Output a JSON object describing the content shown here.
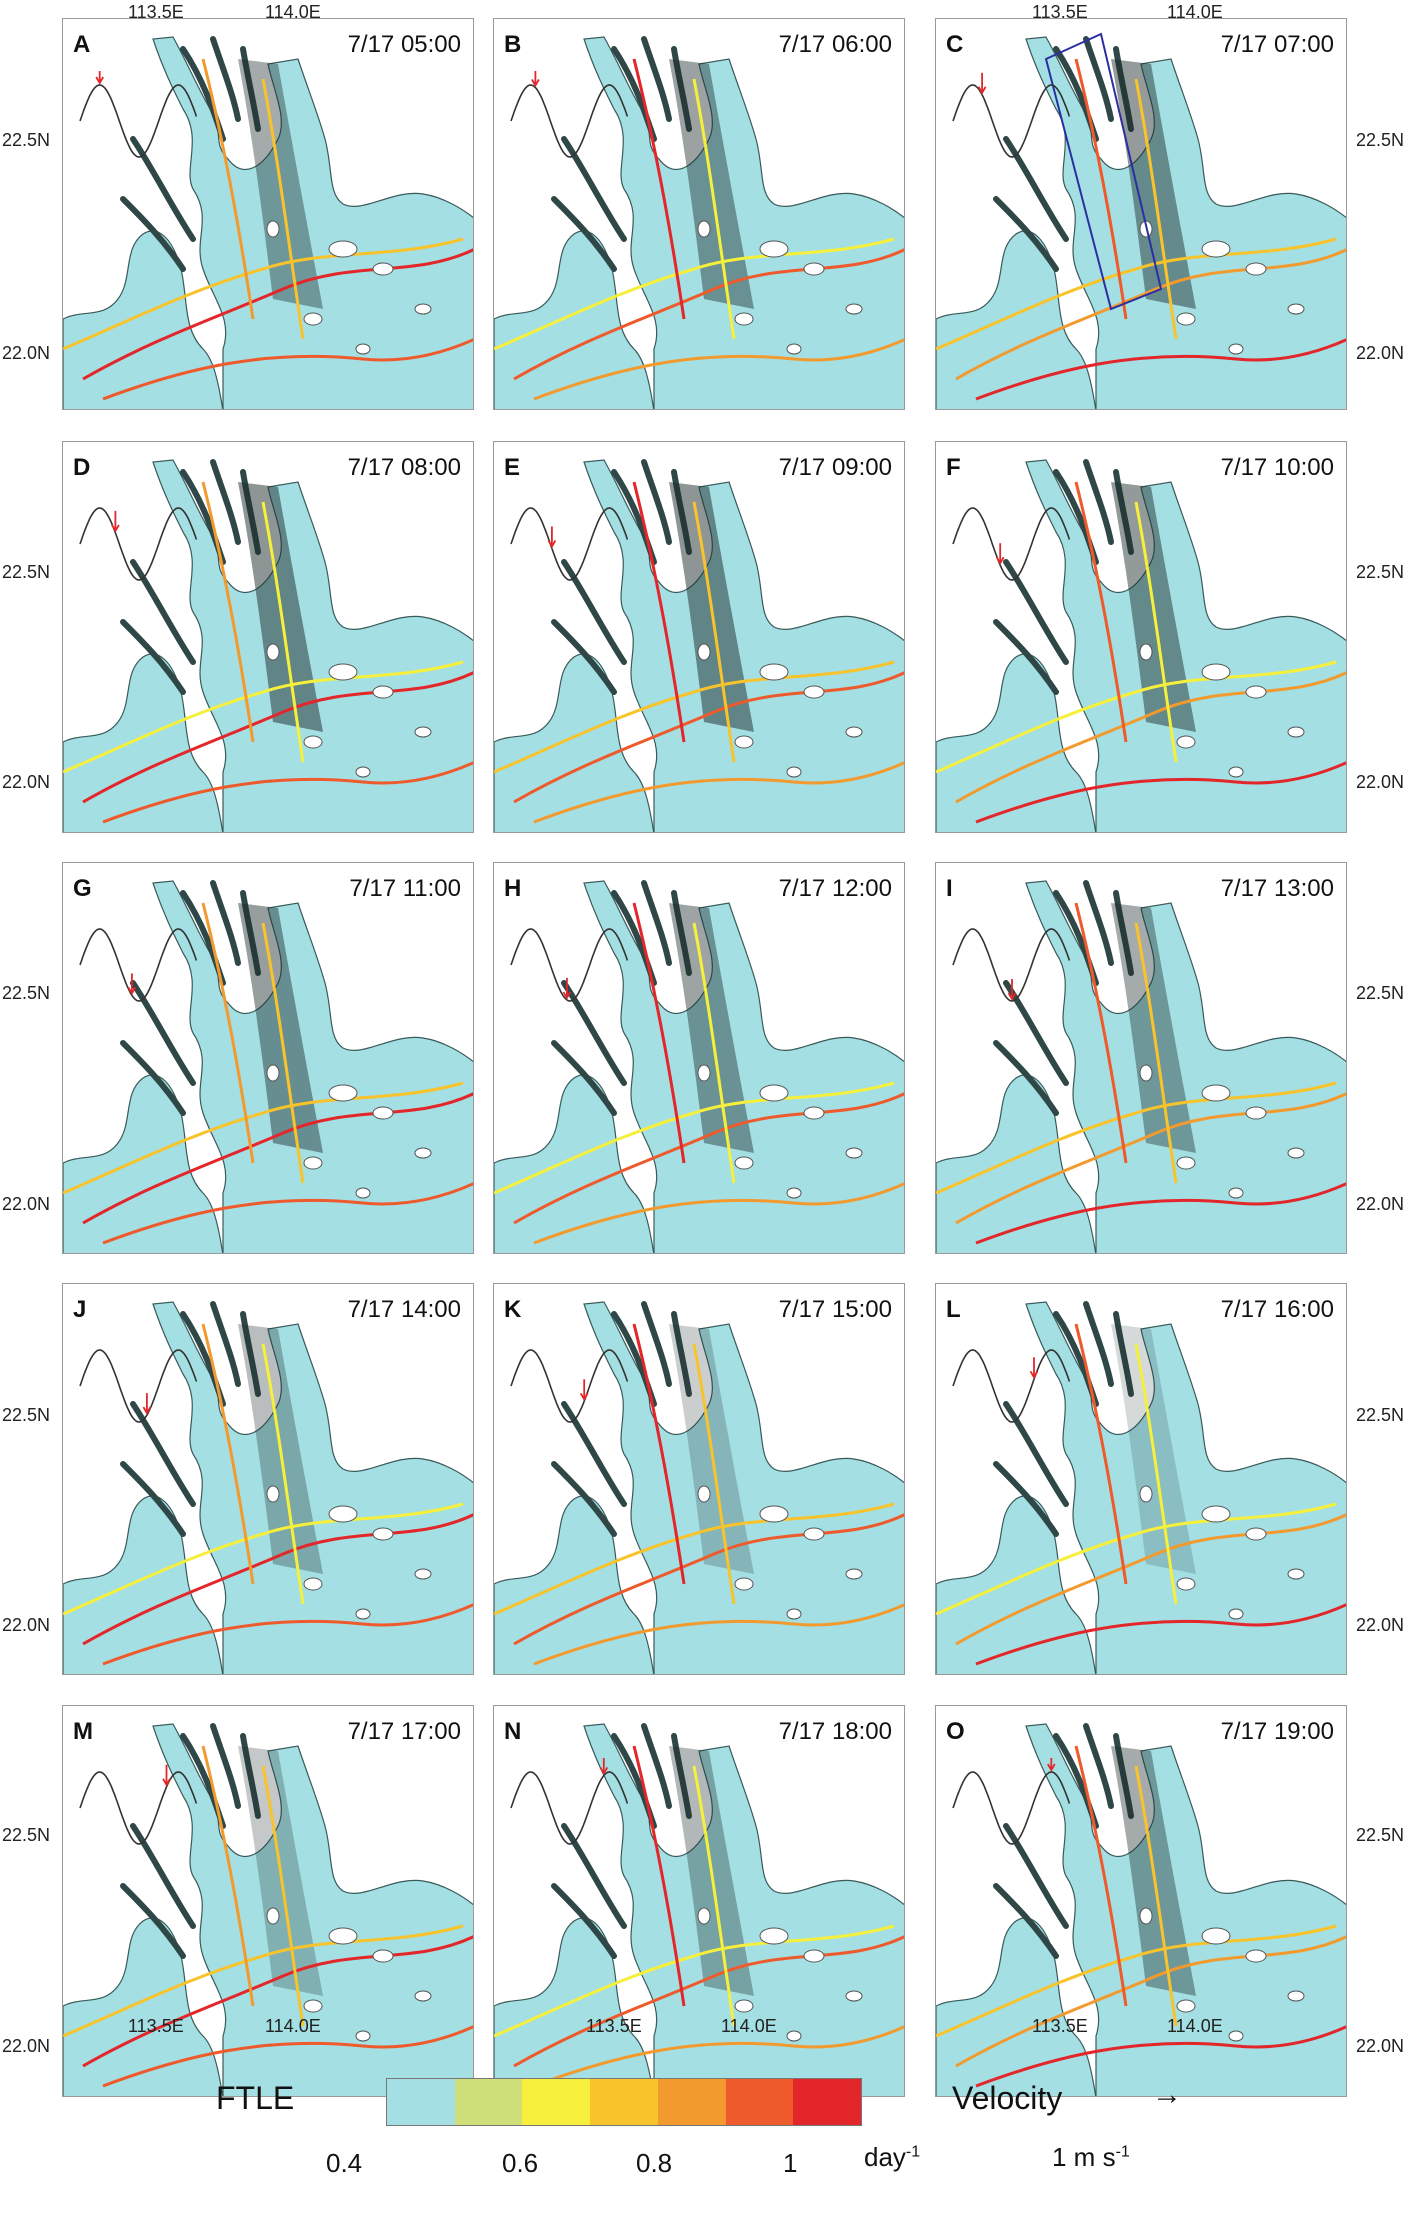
{
  "top_axis": {
    "left": "113.5E",
    "right": "114.0E"
  },
  "bottom_axis": {
    "left": "113.5E",
    "right": "114.0E"
  },
  "lat_labels": {
    "north": "22.5N",
    "south": "22.0N"
  },
  "panels": [
    {
      "letter": "A",
      "time": "7/17 05:00",
      "phase": 0.25
    },
    {
      "letter": "B",
      "time": "7/17 06:00",
      "phase": 0.31
    },
    {
      "letter": "C",
      "time": "7/17 07:00",
      "phase": 0.37
    },
    {
      "letter": "D",
      "time": "7/17 08:00",
      "phase": 0.45
    },
    {
      "letter": "E",
      "time": "7/17 09:00",
      "phase": 0.52
    },
    {
      "letter": "F",
      "time": "7/17 10:00",
      "phase": 0.6
    },
    {
      "letter": "G",
      "time": "7/17 11:00",
      "phase": 0.66
    },
    {
      "letter": "H",
      "time": "7/17 12:00",
      "phase": 0.71
    },
    {
      "letter": "I",
      "time": "7/17 13:00",
      "phase": 0.75
    },
    {
      "letter": "J",
      "time": "7/17 14:00",
      "phase": 0.85
    },
    {
      "letter": "K",
      "time": "7/17 15:00",
      "phase": 0.93
    },
    {
      "letter": "L",
      "time": "7/17 16:00",
      "phase": 1.03
    },
    {
      "letter": "M",
      "time": "7/17 17:00",
      "phase": 1.1
    },
    {
      "letter": "N",
      "time": "7/17 18:00",
      "phase": 1.18
    },
    {
      "letter": "O",
      "time": "7/17 19:00",
      "phase": 1.25
    }
  ],
  "legend": {
    "title": "FTLE",
    "colors": [
      "#a4dfe3",
      "#cfe07a",
      "#f6ef3c",
      "#f8c32b",
      "#f29a2e",
      "#ee5a2b",
      "#e3262a"
    ],
    "ticks": [
      "0.4",
      "0.6",
      "0.8",
      "1"
    ],
    "unit": "day",
    "unit_exp": "-1",
    "velocity_title": "Velocity",
    "velocity_arrow": "→",
    "velocity_scale": "1 m s",
    "velocity_exp": "-1"
  },
  "colors": {
    "water": "#a4dfe3",
    "land": "#ffffff",
    "arrows": "#1d2b2b",
    "tide_curve": "#333333",
    "tide_marker": "#e3262a",
    "box": "#2a2fa0"
  }
}
